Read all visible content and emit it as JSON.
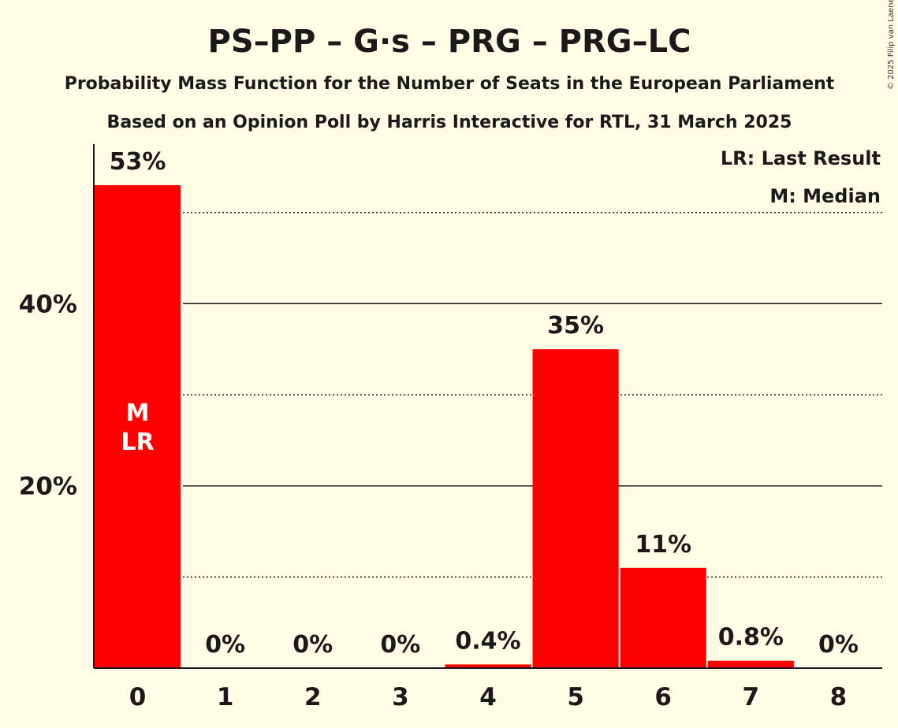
{
  "chart_data": {
    "type": "bar",
    "title": "PS–PP – G·s – PRG – PRG–LC",
    "subtitle": "Probability Mass Function for the Number of Seats in the European Parliament",
    "subtitle2": "Based on an Opinion Poll by Harris Interactive for RTL, 31 March 2025",
    "categories": [
      "0",
      "1",
      "2",
      "3",
      "4",
      "5",
      "6",
      "7",
      "8"
    ],
    "values": [
      53,
      0,
      0,
      0,
      0.4,
      35,
      11,
      0.8,
      0
    ],
    "value_labels": [
      "53%",
      "0%",
      "0%",
      "0%",
      "0.4%",
      "35%",
      "11%",
      "0.8%",
      "0%"
    ],
    "ylim": [
      0,
      57.5
    ],
    "yticks_major": [
      {
        "value": 20,
        "label": "20%"
      },
      {
        "value": 40,
        "label": "40%"
      }
    ],
    "yticks_minor": [
      10,
      30,
      50
    ],
    "grid": true,
    "bar_color": "#FF0000",
    "background_color": "#FFFDE6",
    "in_bar_labels": [
      {
        "category": "0",
        "lines": [
          "M",
          "LR"
        ]
      }
    ],
    "legend": {
      "placement": "top-right",
      "items": [
        "LR: Last Result",
        "M: Median"
      ]
    },
    "copyright": "© 2025 Filip van Laenen"
  }
}
